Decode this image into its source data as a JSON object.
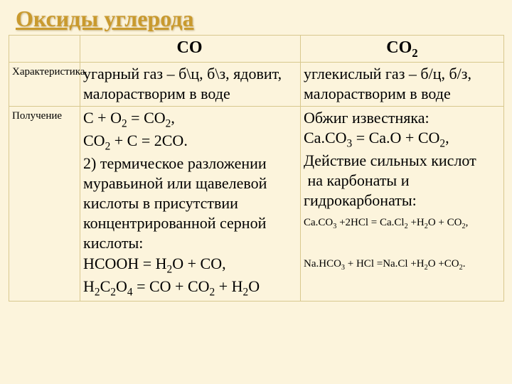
{
  "title": "Оксиды углерода",
  "headers": {
    "blank": "",
    "co": "CO",
    "co2_pre": "CO",
    "co2_sub": "2"
  },
  "rows": {
    "char": {
      "label": "Характеристика",
      "co": " угарный газ – б\\ц, б\\з, ядовит, малорастворим в воде",
      "co2": "углекислый газ – б/ц, б/з, малорастворим в воде"
    },
    "prep": {
      "label": "Получение"
    }
  }
}
